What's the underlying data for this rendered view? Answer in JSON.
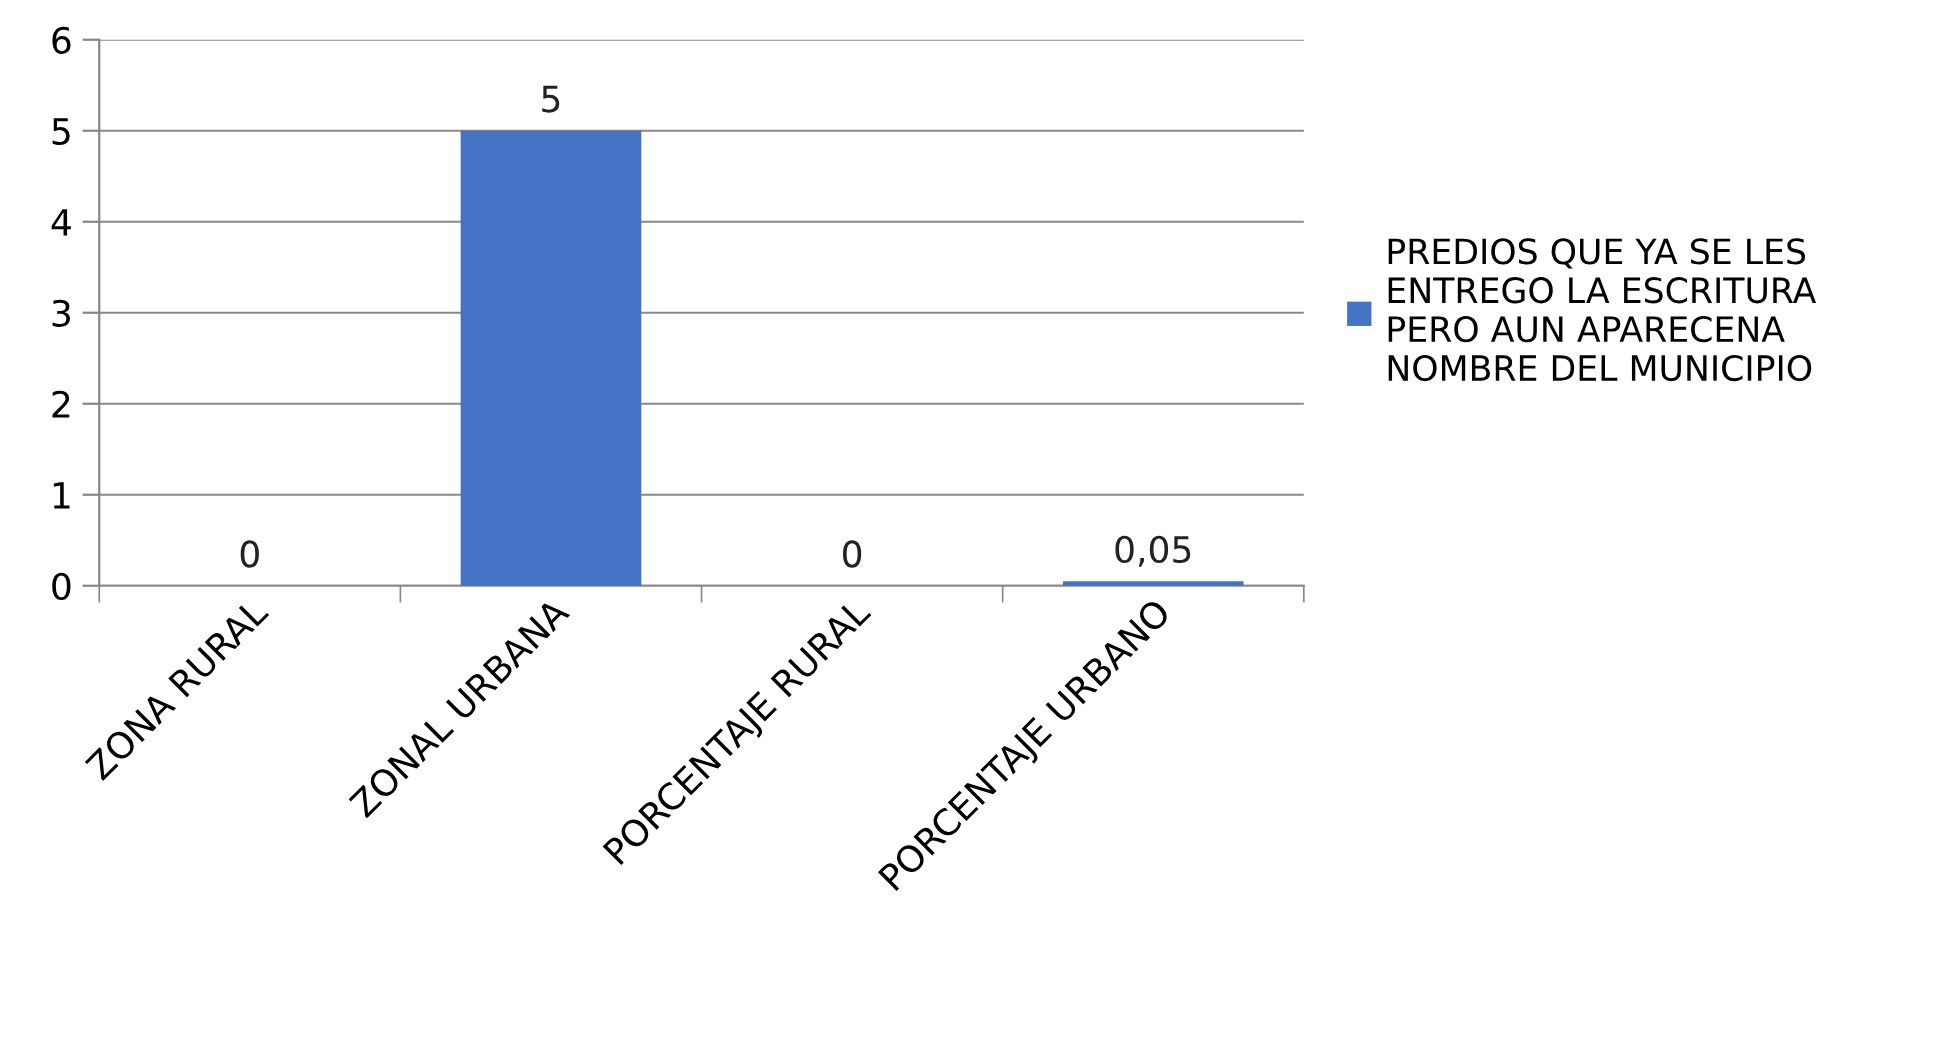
{
  "chart_data": {
    "type": "bar",
    "categories": [
      "ZONA RURAL",
      "ZONAL URBANA",
      "PORCENTAJE RURAL",
      "PORCENTAJE URBANO"
    ],
    "series": [
      {
        "name": "PREDIOS QUE YA SE LES\nENTREGO LA ESCRITURA\nPERO AUN APARECENA\nNOMBRE DEL MUNICIPIO",
        "color": "#4472c4",
        "values": [
          0,
          5,
          0,
          0.05
        ],
        "value_labels": [
          "0",
          "5",
          "0",
          "0,05"
        ]
      }
    ],
    "ylim": [
      0,
      6
    ],
    "yticks": [
      0,
      1,
      2,
      3,
      4,
      5,
      6
    ],
    "grid": "y",
    "legend": "right"
  }
}
